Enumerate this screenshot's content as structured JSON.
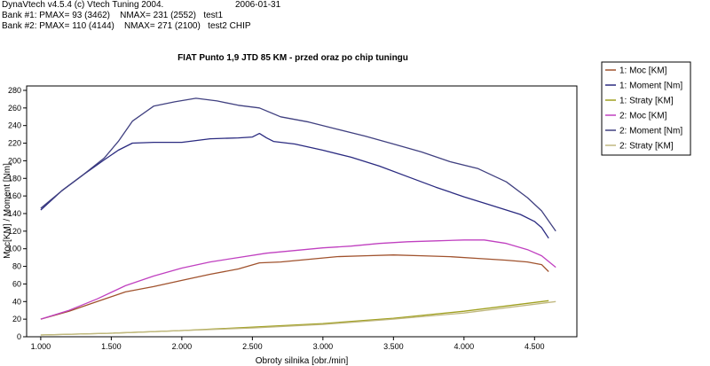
{
  "header": {
    "line1": "DynaVtech v4.5.4 (c) Vtech Tuning 2004.",
    "date": "2006-01-31",
    "bank1": "Bank #1: PMAX= 93 (3462)    NMAX= 231 (2552)   test1",
    "bank2": "Bank #2: PMAX= 110 (4144)    NMAX= 271 (2100)   test2 CHIP"
  },
  "chart_data": {
    "type": "line",
    "title": "FIAT Punto 1,9 JTD  85 KM - przed oraz po chip tuningu",
    "xlabel": "Obroty silnika [obr./min]",
    "ylabel": "Moc[KM] / Moment [Nm]",
    "xlim": [
      900,
      4800
    ],
    "ylim": [
      0,
      285
    ],
    "xticks": [
      1000,
      1500,
      2000,
      2500,
      3000,
      3500,
      4000,
      4500
    ],
    "xtick_labels": [
      "1.000",
      "1.500",
      "2.000",
      "2.500",
      "3.000",
      "3.500",
      "4.000",
      "4.500"
    ],
    "yticks": [
      0,
      20,
      40,
      60,
      80,
      100,
      120,
      140,
      160,
      180,
      200,
      220,
      240,
      260,
      280
    ],
    "ytick_labels": [
      "0",
      "20",
      "40",
      "60",
      "80",
      "100",
      "120",
      "140",
      "160",
      "180",
      "200",
      "220",
      "240",
      "260",
      "280"
    ],
    "grid": false,
    "legend_position": "right",
    "series": [
      {
        "name": "1: Moc [KM]",
        "color": "#a0522d",
        "x": [
          1000,
          1200,
          1400,
          1600,
          1800,
          2000,
          2200,
          2400,
          2550,
          2700,
          2900,
          3100,
          3300,
          3500,
          3700,
          3900,
          4100,
          4300,
          4450,
          4550,
          4600
        ],
        "y": [
          20,
          29,
          40,
          51,
          57,
          64,
          71,
          77,
          84,
          85,
          88,
          91,
          92,
          93,
          92,
          91,
          89,
          87,
          85,
          82,
          74
        ]
      },
      {
        "name": "1: Moment [Nm]",
        "color": "#2a2a80",
        "x": [
          1000,
          1150,
          1300,
          1450,
          1550,
          1650,
          1800,
          2000,
          2200,
          2400,
          2500,
          2550,
          2600,
          2650,
          2800,
          3000,
          3200,
          3400,
          3600,
          3800,
          4000,
          4200,
          4400,
          4500,
          4550,
          4600
        ],
        "y": [
          144,
          166,
          184,
          201,
          212,
          220,
          221,
          221,
          225,
          226,
          227,
          231,
          226,
          222,
          219,
          212,
          204,
          194,
          182,
          170,
          159,
          149,
          139,
          131,
          124,
          112
        ]
      },
      {
        "name": "1: Straty [KM]",
        "color": "#a0a020",
        "x": [
          1000,
          1500,
          2000,
          2500,
          3000,
          3500,
          4000,
          4500,
          4600
        ],
        "y": [
          2,
          4,
          7,
          11,
          15,
          21,
          29,
          39,
          41
        ]
      },
      {
        "name": "2: Moc [KM]",
        "color": "#c040c0",
        "x": [
          1000,
          1200,
          1400,
          1600,
          1800,
          2000,
          2200,
          2400,
          2600,
          2800,
          3000,
          3200,
          3400,
          3600,
          3800,
          4000,
          4144,
          4300,
          4450,
          4550,
          4650
        ],
        "y": [
          20,
          30,
          43,
          58,
          69,
          78,
          85,
          90,
          95,
          98,
          101,
          103,
          106,
          108,
          109,
          110,
          110,
          106,
          99,
          92,
          79
        ]
      },
      {
        "name": "2: Moment [Nm]",
        "color": "#404080",
        "x": [
          1000,
          1150,
          1300,
          1450,
          1550,
          1650,
          1800,
          1950,
          2100,
          2250,
          2400,
          2550,
          2700,
          2900,
          3100,
          3300,
          3500,
          3700,
          3900,
          4100,
          4300,
          4450,
          4550,
          4650
        ],
        "y": [
          146,
          166,
          184,
          203,
          222,
          245,
          262,
          267,
          271,
          268,
          263,
          260,
          250,
          244,
          236,
          228,
          219,
          210,
          199,
          191,
          176,
          158,
          143,
          120
        ]
      },
      {
        "name": "2: Straty [KM]",
        "color": "#c0b880",
        "x": [
          1000,
          1500,
          2000,
          2500,
          3000,
          3500,
          4000,
          4500,
          4650
        ],
        "y": [
          2,
          4,
          7,
          10,
          14,
          20,
          27,
          37,
          40
        ]
      }
    ]
  }
}
